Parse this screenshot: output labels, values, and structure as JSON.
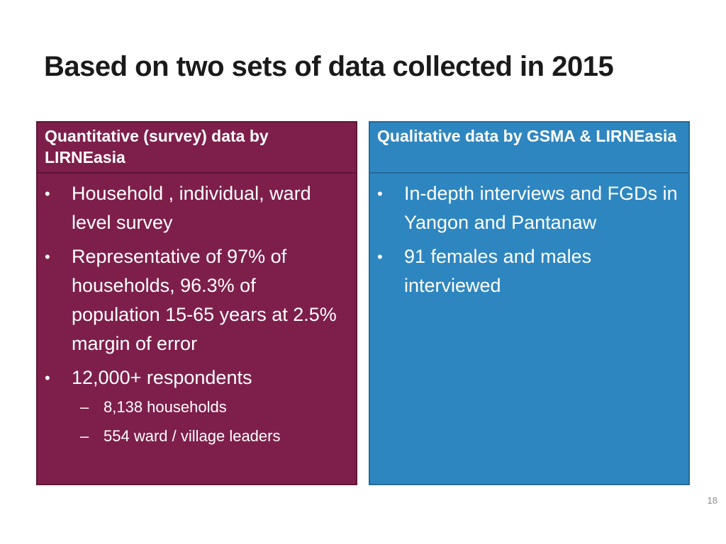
{
  "slide": {
    "title": "Based on two sets of data collected in 2015",
    "page_number": "18"
  },
  "left_panel": {
    "heading": "Quantitative (survey) data by LIRNEasia",
    "bullets": [
      "Household , individual, ward level survey",
      "Representative of 97% of households, 96.3% of population 15-65 years at 2.5% margin of error",
      "12,000+ respondents"
    ],
    "sub_bullets": [
      "8,138 households",
      "554 ward / village leaders"
    ]
  },
  "right_panel": {
    "heading": "Qualitative data by GSMA & LIRNEasia",
    "bullets": [
      "In-depth interviews and FGDs in Yangon and Pantanaw",
      "91 females and males interviewed"
    ]
  },
  "colors": {
    "left_panel_bg": "#7e1f4b",
    "right_panel_bg": "#2e86c0",
    "title_text": "#1a1a1a",
    "panel_text": "#ffffff"
  },
  "symbols": {
    "bullet": "•",
    "dash": "–"
  }
}
